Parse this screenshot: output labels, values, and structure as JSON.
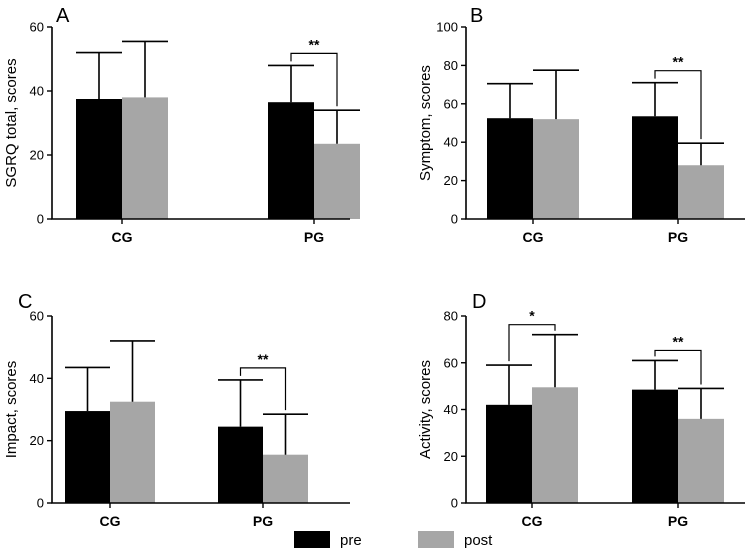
{
  "colors": {
    "pre": "#000000",
    "post": "#a6a6a6"
  },
  "legend": [
    {
      "key": "pre",
      "label": "pre"
    },
    {
      "key": "post",
      "label": "post"
    }
  ],
  "chart_data": [
    {
      "panel": "A",
      "type": "bar",
      "ylabel": "SGRQ total, scores",
      "categories": [
        "CG",
        "PG"
      ],
      "ylim": [
        0,
        60
      ],
      "yticks": [
        0,
        20,
        40,
        60
      ],
      "series": [
        {
          "name": "pre",
          "values": [
            37.5,
            36.5
          ],
          "errors": [
            14.5,
            11.5
          ]
        },
        {
          "name": "post",
          "values": [
            38,
            23.5
          ],
          "errors": [
            17.5,
            10.5
          ]
        }
      ],
      "significance": [
        {
          "category": "PG",
          "label": "**"
        }
      ]
    },
    {
      "panel": "B",
      "type": "bar",
      "ylabel": "Symptom, scores",
      "categories": [
        "CG",
        "PG"
      ],
      "ylim": [
        0,
        100
      ],
      "yticks": [
        0,
        20,
        40,
        60,
        80,
        100
      ],
      "series": [
        {
          "name": "pre",
          "values": [
            52.5,
            53.5
          ],
          "errors": [
            18,
            17.5
          ]
        },
        {
          "name": "post",
          "values": [
            52,
            28
          ],
          "errors": [
            25.5,
            11.5
          ]
        }
      ],
      "significance": [
        {
          "category": "PG",
          "label": "**"
        }
      ]
    },
    {
      "panel": "C",
      "type": "bar",
      "ylabel": "Impact, scores",
      "categories": [
        "CG",
        "PG"
      ],
      "ylim": [
        0,
        60
      ],
      "yticks": [
        0,
        20,
        40,
        60
      ],
      "series": [
        {
          "name": "pre",
          "values": [
            29.5,
            24.5
          ],
          "errors": [
            14,
            15
          ]
        },
        {
          "name": "post",
          "values": [
            32.5,
            15.5
          ],
          "errors": [
            19.5,
            13
          ]
        }
      ],
      "significance": [
        {
          "category": "PG",
          "label": "**"
        }
      ]
    },
    {
      "panel": "D",
      "type": "bar",
      "ylabel": "Activity, scores",
      "categories": [
        "CG",
        "PG"
      ],
      "ylim": [
        0,
        80
      ],
      "yticks": [
        0,
        20,
        40,
        60,
        80
      ],
      "series": [
        {
          "name": "pre",
          "values": [
            42,
            48.5
          ],
          "errors": [
            17,
            12.5
          ]
        },
        {
          "name": "post",
          "values": [
            49.5,
            36
          ],
          "errors": [
            22.5,
            13
          ]
        }
      ],
      "significance": [
        {
          "category": "CG",
          "label": "*"
        },
        {
          "category": "PG",
          "label": "**"
        }
      ]
    }
  ]
}
